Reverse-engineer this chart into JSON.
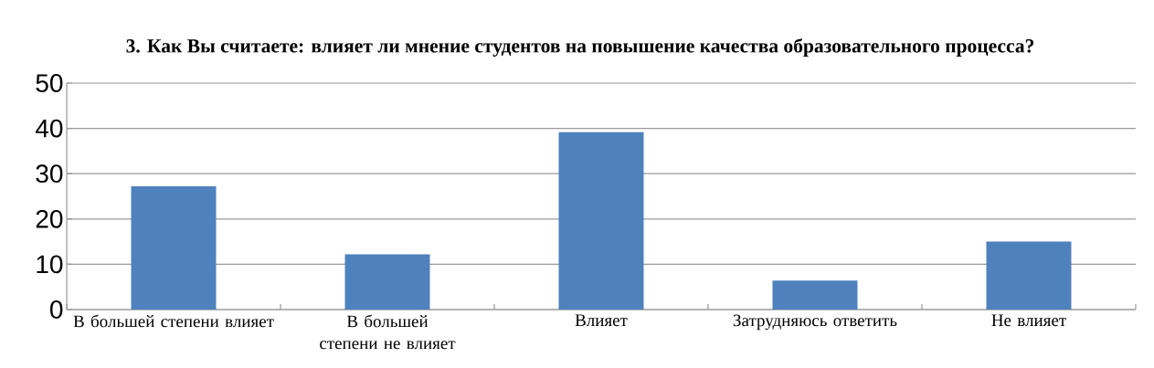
{
  "chart_data": {
    "type": "bar",
    "title": "3. Как Вы считаете: влияет ли мнение студентов на повышение качества образовательного процесса?",
    "categories": [
      "В большей степени влияет",
      "В большей степени не влияет",
      "Влияет",
      "Затрудняюсь ответить",
      "Не влияет"
    ],
    "values": [
      27.2,
      12.2,
      39.2,
      6.4,
      15.0
    ],
    "color": "#4f81bd",
    "ylim": [
      0,
      50
    ],
    "yticks": [
      0,
      10,
      20,
      30,
      40,
      50
    ],
    "grid": "y"
  }
}
